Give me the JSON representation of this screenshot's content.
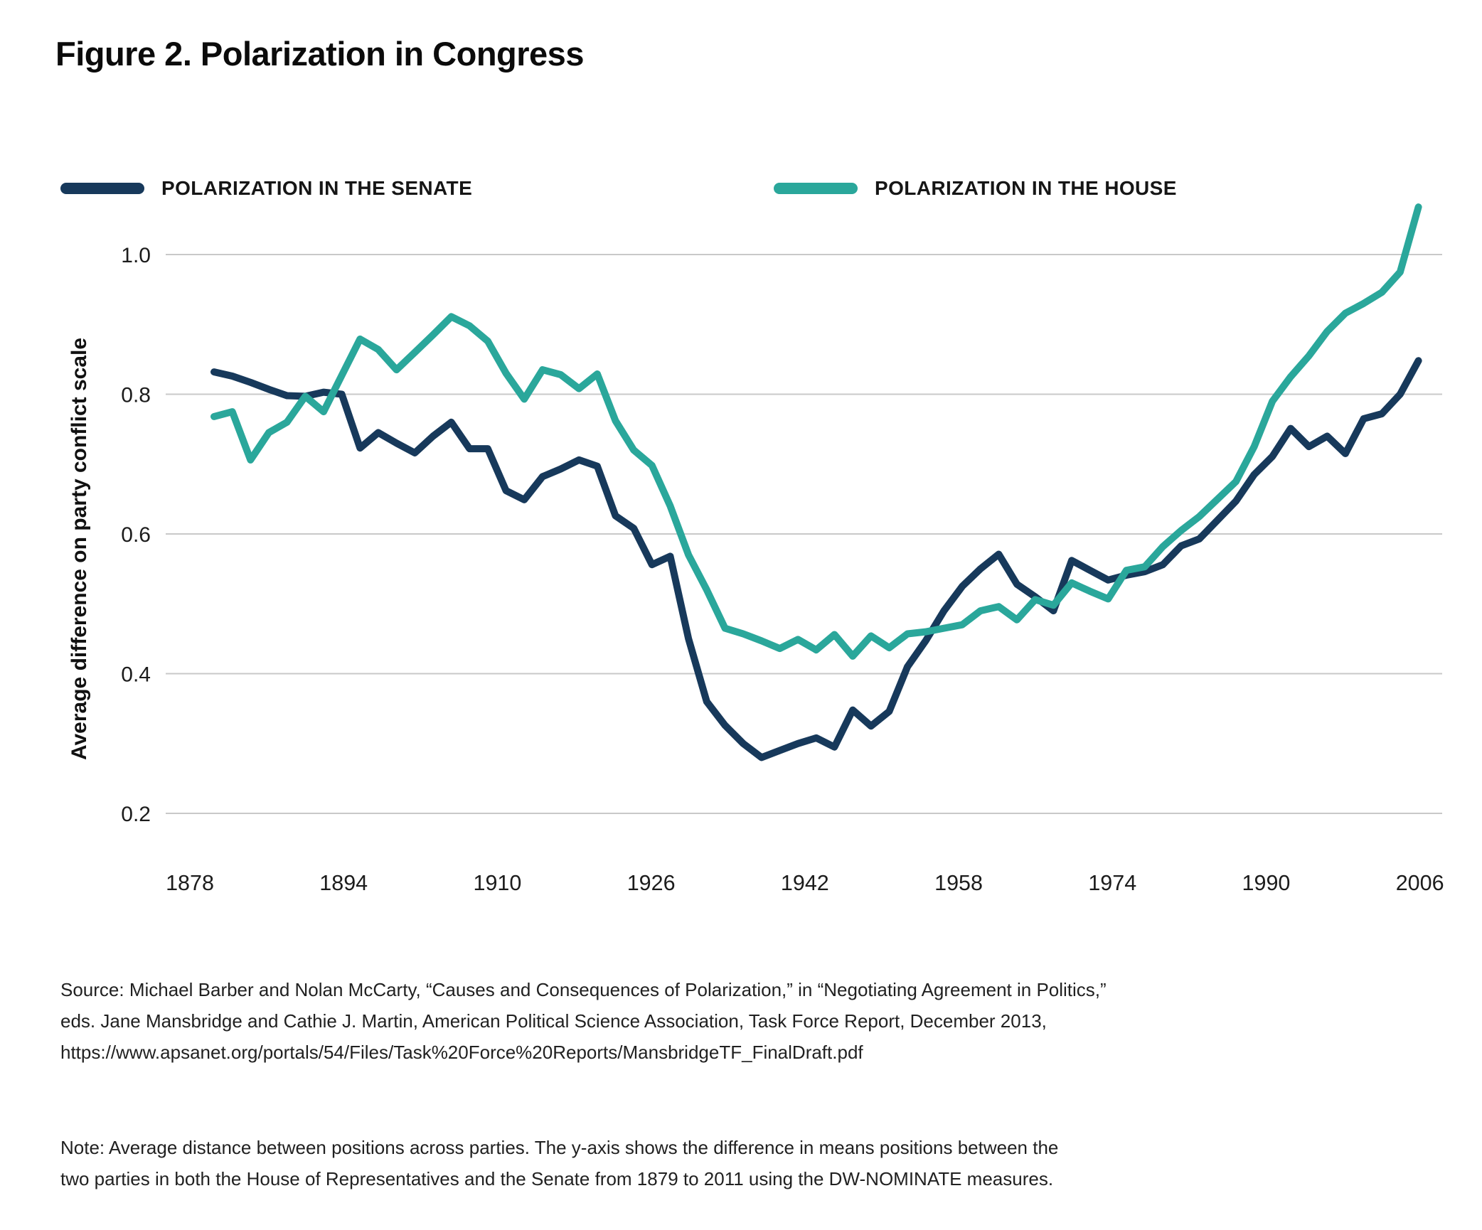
{
  "title": "Figure 2. Polarization in Congress",
  "legend": {
    "senate_label": "POLARIZATION IN THE SENATE",
    "house_label": "POLARIZATION IN THE HOUSE"
  },
  "colors": {
    "senate": "#17395B",
    "house": "#2AA79B",
    "grid": "#C9C9C9",
    "tick_text": "#1c1c1c"
  },
  "y_axis": {
    "title": "Average difference on party conflict scale",
    "ticks": [
      "1.0",
      "0.8",
      "0.6",
      "0.4",
      "0.2"
    ],
    "tick_values": [
      1.0,
      0.8,
      0.6,
      0.4,
      0.2
    ]
  },
  "x_axis": {
    "tick_years": [
      1878,
      1894,
      1910,
      1926,
      1942,
      1958,
      1974,
      1990,
      2006
    ]
  },
  "source_lines": [
    "Source: Michael Barber and Nolan McCarty, “Causes and Consequences of Polarization,” in “Negotiating Agreement in Politics,”",
    "eds. Jane Mansbridge and Cathie J. Martin, American Political Science Association, Task Force Report, December 2013,",
    "https://www.apsanet.org/portals/54/Files/Task%20Force%20Reports/MansbridgeTF_FinalDraft.pdf"
  ],
  "note_lines": [
    "Note: Average distance between positions across parties. The y-axis shows the difference in means positions between the",
    "two parties in both the House of Representatives and the Senate from 1879 to 2011 using the DW-NOMINATE measures."
  ],
  "chart_data": {
    "type": "line",
    "title": "Figure 2. Polarization in Congress",
    "xlabel": "",
    "ylabel": "Average difference on party conflict scale",
    "x_years": [
      1879,
      1881,
      1883,
      1885,
      1887,
      1889,
      1891,
      1893,
      1895,
      1897,
      1899,
      1901,
      1903,
      1905,
      1907,
      1909,
      1911,
      1913,
      1915,
      1917,
      1919,
      1921,
      1923,
      1925,
      1927,
      1929,
      1931,
      1933,
      1935,
      1937,
      1939,
      1941,
      1943,
      1945,
      1947,
      1949,
      1951,
      1953,
      1955,
      1957,
      1959,
      1961,
      1963,
      1965,
      1967,
      1969,
      1971,
      1973,
      1975,
      1977,
      1979,
      1981,
      1983,
      1985,
      1987,
      1989,
      1991,
      1993,
      1995,
      1997,
      1999,
      2001,
      2003,
      2005,
      2007,
      2009,
      2011
    ],
    "series": [
      {
        "name": "Polarization in the Senate",
        "color_key": "senate",
        "values": [
          0.832,
          0.826,
          0.817,
          0.807,
          0.798,
          0.797,
          0.803,
          0.8,
          0.723,
          0.745,
          0.73,
          0.716,
          0.74,
          0.76,
          0.722,
          0.722,
          0.662,
          0.649,
          0.682,
          0.693,
          0.706,
          0.697,
          0.626,
          0.608,
          0.556,
          0.568,
          0.45,
          0.36,
          0.326,
          0.3,
          0.28,
          0.29,
          0.3,
          0.308,
          0.295,
          0.348,
          0.325,
          0.346,
          0.41,
          0.447,
          0.49,
          0.525,
          0.55,
          0.571,
          0.528,
          0.51,
          0.49,
          0.562,
          0.548,
          0.534,
          0.541,
          0.546,
          0.556,
          0.583,
          0.593,
          0.62,
          0.647,
          0.685,
          0.711,
          0.751,
          0.725,
          0.74,
          0.715,
          0.765,
          0.772,
          0.8,
          0.848
        ]
      },
      {
        "name": "Polarization in the House",
        "color_key": "house",
        "values": [
          0.768,
          0.775,
          0.706,
          0.745,
          0.76,
          0.797,
          0.775,
          0.827,
          0.879,
          0.864,
          0.835,
          0.86,
          0.885,
          0.911,
          0.898,
          0.876,
          0.83,
          0.793,
          0.835,
          0.828,
          0.808,
          0.829,
          0.762,
          0.72,
          0.698,
          0.64,
          0.57,
          0.52,
          0.465,
          0.457,
          0.447,
          0.436,
          0.449,
          0.434,
          0.456,
          0.425,
          0.454,
          0.437,
          0.457,
          0.46,
          0.465,
          0.47,
          0.49,
          0.496,
          0.477,
          0.506,
          0.498,
          0.53,
          0.518,
          0.507,
          0.548,
          0.553,
          0.582,
          0.605,
          0.625,
          0.65,
          0.675,
          0.725,
          0.79,
          0.825,
          0.855,
          0.89,
          0.916,
          0.93,
          0.946,
          0.975,
          1.068
        ]
      }
    ],
    "ylim": [
      0.2,
      1.0
    ],
    "grid": "horizontal-only",
    "legend_position": "top-left"
  }
}
